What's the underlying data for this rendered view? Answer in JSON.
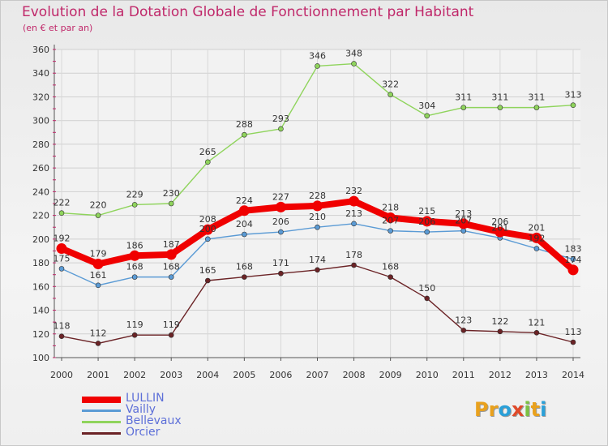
{
  "title": "Evolution de la Dotation Globale de Fonctionnement par Habitant",
  "subtitle": "(en € et par an)",
  "brand": "Proxiti",
  "brand_colors": [
    "#e9a11d",
    "#e9a11d",
    "#2aa0d8",
    "#e04a2a",
    "#7cc242",
    "#e9a11d",
    "#2aa0d8"
  ],
  "chart_data": {
    "type": "line",
    "x": [
      2000,
      2001,
      2002,
      2003,
      2004,
      2005,
      2006,
      2007,
      2008,
      2009,
      2010,
      2011,
      2012,
      2013,
      2014
    ],
    "ylim": [
      100,
      360
    ],
    "yticks": [
      100,
      120,
      140,
      160,
      180,
      200,
      220,
      240,
      260,
      280,
      300,
      320,
      340,
      360
    ],
    "grid": true,
    "legend_position": "bottom-left",
    "series": [
      {
        "name": "Orcier",
        "color": "#6b2326",
        "values": [
          118,
          112,
          119,
          119,
          165,
          168,
          171,
          174,
          178,
          168,
          150,
          123,
          122,
          121,
          113
        ],
        "labels": [
          "118",
          "112",
          "119",
          "119",
          "165",
          "168",
          "171",
          "174",
          "178",
          "168",
          "150",
          "123",
          "122",
          "121",
          "113"
        ]
      },
      {
        "name": "Bellevaux",
        "color": "#8fd45c",
        "values": [
          222,
          220,
          229,
          230,
          265,
          288,
          293,
          346,
          348,
          322,
          304,
          311,
          311,
          311,
          313
        ],
        "labels": [
          "222",
          "220",
          "229",
          "230",
          "265",
          "288",
          "293",
          "346",
          "348",
          "322",
          "304",
          "311",
          "311",
          "311",
          "313"
        ]
      },
      {
        "name": "Vailly",
        "color": "#5b9bd5",
        "values": [
          175,
          161,
          168,
          168,
          200,
          204,
          206,
          210,
          213,
          207,
          206,
          207,
          201,
          192,
          183
        ],
        "labels": [
          "175",
          "161",
          "168",
          "168",
          "200",
          "204",
          "206",
          "210",
          "213",
          "207",
          "206",
          "207",
          "201",
          "192",
          "183"
        ]
      },
      {
        "name": "LULLIN",
        "color": "#f00000",
        "values": [
          192,
          179,
          186,
          187,
          208,
          224,
          227,
          228,
          232,
          218,
          215,
          213,
          206,
          201,
          174
        ],
        "labels": [
          "192",
          "179",
          "186",
          "187",
          "208",
          "224",
          "227",
          "228",
          "232",
          "218",
          "215",
          "213",
          "206",
          "201",
          "174"
        ]
      }
    ],
    "legend_order": [
      "LULLIN",
      "Vailly",
      "Bellevaux",
      "Orcier"
    ]
  }
}
